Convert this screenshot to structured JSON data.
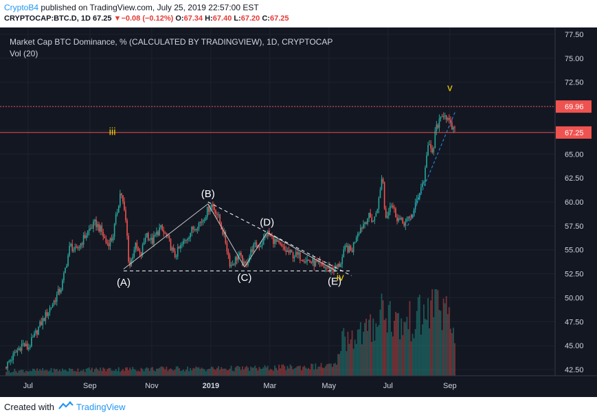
{
  "header": {
    "user": "CryptoB4",
    "published_text": " published on TradingView.com, July 25, 2019 22:57:00 EST",
    "symbol_line": "CRYPTOCAP:BTC.D, 1D 67.25",
    "change_arrow": "▼",
    "change": "−0.08 (−0.12%)",
    "o_label": "O:",
    "o_value": "67.34",
    "h_label": "H:",
    "h_value": "67.40",
    "l_label": "L:",
    "l_value": "67.20",
    "c_label": "C:",
    "c_value": "67.25"
  },
  "legend": {
    "title": "Market Cap BTC Dominance, % (CALCULATED BY TRADINGVIEW), 1D, CRYPTOCAP",
    "vol": "Vol (20)"
  },
  "footer": {
    "created_with": "Created with",
    "brand": "TradingView"
  },
  "colors": {
    "background": "#131722",
    "up": "#26a69a",
    "down": "#ef5350",
    "wave_label": "#f5d000",
    "annotation": "#ffffff",
    "hline_red": "#ef5350",
    "trend_blue": "#2196f3"
  },
  "chart_data": {
    "type": "candlestick",
    "y_axis": {
      "ylim": [
        42.5,
        77.5
      ],
      "ticks": [
        "42.50",
        "45.00",
        "47.50",
        "50.00",
        "52.50",
        "55.00",
        "57.50",
        "60.00",
        "62.50",
        "65.00",
        "67.50",
        "70.00",
        "72.50",
        "75.00",
        "77.50"
      ]
    },
    "x_axis": {
      "ticks": [
        "Jul",
        "Sep",
        "Nov",
        "2019",
        "Mar",
        "May",
        "Jul",
        "Sep"
      ]
    },
    "price_labels": [
      {
        "value": 69.96,
        "text": "69.96",
        "style": "dotted"
      },
      {
        "value": 67.25,
        "text": "67.25",
        "style": "solid"
      }
    ],
    "anchors": [
      {
        "t": 0,
        "v": 42.8
      },
      {
        "t": 6,
        "v": 45.2
      },
      {
        "t": 8,
        "v": 44.7
      },
      {
        "t": 12,
        "v": 47.0
      },
      {
        "t": 17,
        "v": 49.5
      },
      {
        "t": 20,
        "v": 51.2
      },
      {
        "t": 23,
        "v": 55.5
      },
      {
        "t": 25,
        "v": 54.8
      },
      {
        "t": 28,
        "v": 56.3
      },
      {
        "t": 30,
        "v": 57.2
      },
      {
        "t": 32,
        "v": 57.8
      },
      {
        "t": 34,
        "v": 57.0
      },
      {
        "t": 36,
        "v": 55.6
      },
      {
        "t": 38,
        "v": 56.2
      },
      {
        "t": 40,
        "v": 59.5
      },
      {
        "t": 41,
        "v": 61.3
      },
      {
        "t": 43,
        "v": 57.5
      },
      {
        "t": 44,
        "v": 53.0
      },
      {
        "t": 46,
        "v": 55.5
      },
      {
        "t": 48,
        "v": 54.3
      },
      {
        "t": 50,
        "v": 56.8
      },
      {
        "t": 52,
        "v": 55.8
      },
      {
        "t": 55,
        "v": 57.3
      },
      {
        "t": 58,
        "v": 56.0
      },
      {
        "t": 60,
        "v": 54.3
      },
      {
        "t": 63,
        "v": 55.6
      },
      {
        "t": 66,
        "v": 57.0
      },
      {
        "t": 70,
        "v": 58.1
      },
      {
        "t": 73,
        "v": 59.8
      },
      {
        "t": 75,
        "v": 59.0
      },
      {
        "t": 78,
        "v": 56.2
      },
      {
        "t": 80,
        "v": 53.3
      },
      {
        "t": 83,
        "v": 54.5
      },
      {
        "t": 85,
        "v": 53.2
      },
      {
        "t": 88,
        "v": 55.3
      },
      {
        "t": 91,
        "v": 55.6
      },
      {
        "t": 93,
        "v": 56.8
      },
      {
        "t": 96,
        "v": 55.8
      },
      {
        "t": 99,
        "v": 55.0
      },
      {
        "t": 102,
        "v": 54.5
      },
      {
        "t": 105,
        "v": 54.3
      },
      {
        "t": 108,
        "v": 53.8
      },
      {
        "t": 111,
        "v": 53.5
      },
      {
        "t": 114,
        "v": 53.1
      },
      {
        "t": 117,
        "v": 53.0
      },
      {
        "t": 119,
        "v": 53.5
      },
      {
        "t": 121,
        "v": 55.3
      },
      {
        "t": 123,
        "v": 54.8
      },
      {
        "t": 125,
        "v": 56.8
      },
      {
        "t": 127,
        "v": 57.6
      },
      {
        "t": 129,
        "v": 58.5
      },
      {
        "t": 131,
        "v": 58.0
      },
      {
        "t": 133,
        "v": 60.5
      },
      {
        "t": 134,
        "v": 63.3
      },
      {
        "t": 135,
        "v": 58.2
      },
      {
        "t": 137,
        "v": 60.0
      },
      {
        "t": 139,
        "v": 58.5
      },
      {
        "t": 141,
        "v": 57.8
      },
      {
        "t": 143,
        "v": 58.0
      },
      {
        "t": 145,
        "v": 58.8
      },
      {
        "t": 147,
        "v": 61.0
      },
      {
        "t": 149,
        "v": 62.5
      },
      {
        "t": 150,
        "v": 66.0
      },
      {
        "t": 152,
        "v": 65.0
      },
      {
        "t": 153,
        "v": 67.8
      },
      {
        "t": 155,
        "v": 68.6
      },
      {
        "t": 156,
        "v": 69.5
      },
      {
        "t": 158,
        "v": 68.0
      },
      {
        "t": 160,
        "v": 67.25
      }
    ],
    "volume_levels": [
      {
        "t": 0,
        "v": 0.06
      },
      {
        "t": 40,
        "v": 0.08
      },
      {
        "t": 90,
        "v": 0.09
      },
      {
        "t": 118,
        "v": 0.12
      },
      {
        "t": 119,
        "v": 0.45
      },
      {
        "t": 130,
        "v": 0.55
      },
      {
        "t": 134,
        "v": 0.85
      },
      {
        "t": 140,
        "v": 0.6
      },
      {
        "t": 150,
        "v": 0.75
      },
      {
        "t": 153,
        "v": 1.0
      },
      {
        "t": 160,
        "v": 0.45
      }
    ],
    "annotations": [
      {
        "text": "(A)",
        "t": 42,
        "v": 52.7
      },
      {
        "text": "(B)",
        "t": 72,
        "v": 59.8
      },
      {
        "text": "(C)",
        "t": 85,
        "v": 53.2
      },
      {
        "text": "(D)",
        "t": 93,
        "v": 56.8
      },
      {
        "text": "(E)",
        "t": 117,
        "v": 52.8
      },
      {
        "text": "iii",
        "wave": true,
        "t": 38,
        "v": 67.0
      },
      {
        "text": "iv",
        "wave": true,
        "t": 119,
        "v": 51.8
      },
      {
        "text": "v",
        "wave": true,
        "t": 158,
        "v": 71.6
      }
    ],
    "trendlines": [
      {
        "t1": 42,
        "v1": 52.8,
        "t2": 123,
        "v2": 52.8,
        "style": "dashed"
      },
      {
        "t1": 72,
        "v1": 60.0,
        "t2": 123,
        "v2": 52.3,
        "style": "dashed"
      },
      {
        "t1": 42,
        "v1": 53.0,
        "t2": 72,
        "v2": 59.8,
        "style": "solid"
      },
      {
        "t1": 72,
        "v1": 59.8,
        "t2": 85,
        "v2": 53.2,
        "style": "solid"
      },
      {
        "t1": 85,
        "v1": 53.2,
        "t2": 93,
        "v2": 56.8,
        "style": "solid"
      },
      {
        "t1": 93,
        "v1": 56.8,
        "t2": 117,
        "v2": 52.9,
        "style": "solid"
      },
      {
        "t1": 143,
        "v1": 57.5,
        "t2": 160,
        "v2": 69.5,
        "style": "blue-dashed"
      }
    ]
  }
}
